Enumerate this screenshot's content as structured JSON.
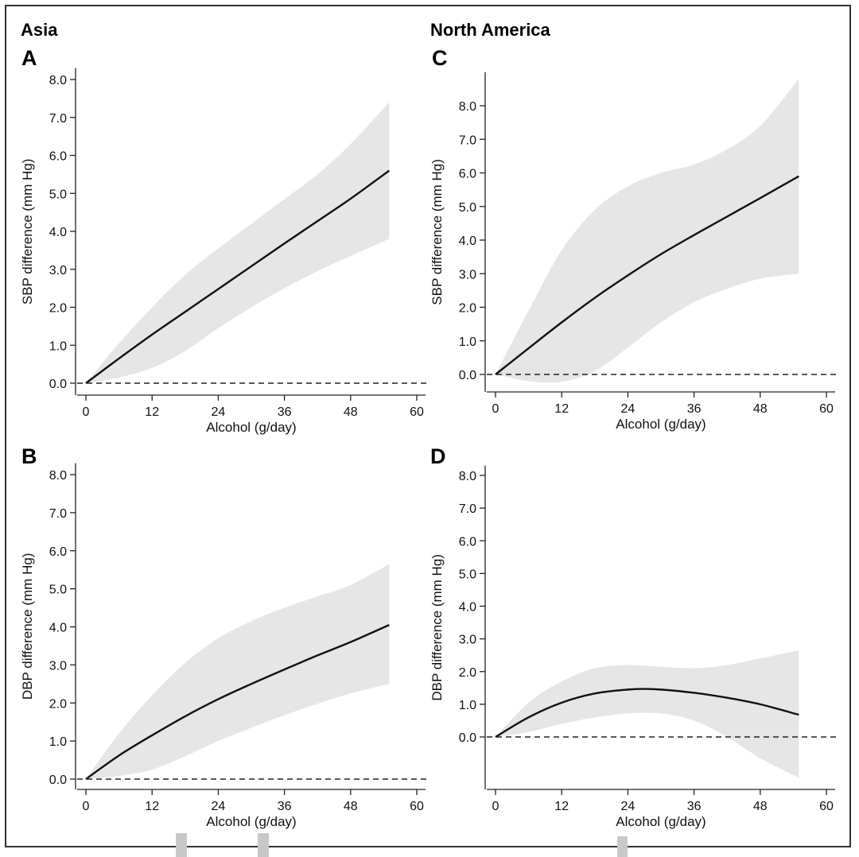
{
  "figure": {
    "regions": [
      {
        "name": "Asia",
        "panels": [
          "A",
          "B"
        ]
      },
      {
        "name": "North America",
        "panels": [
          "C",
          "D"
        ]
      }
    ]
  },
  "chart_data": [
    {
      "panel": "A",
      "region": "Asia",
      "type": "line",
      "xlabel": "Alcohol (g/day)",
      "ylabel": "SBP difference (mm Hg)",
      "xlim": [
        -1,
        62
      ],
      "ylim": [
        -0.3,
        8.3
      ],
      "xticks": [
        0,
        12,
        24,
        36,
        48,
        60
      ],
      "xtick_labels": [
        "0",
        "12",
        "24",
        "36",
        "48",
        "60"
      ],
      "yticks": [
        0,
        1,
        2,
        3,
        4,
        5,
        6,
        7,
        8
      ],
      "ytick_labels": [
        "0.0",
        "1.0",
        "2.0",
        "3.0",
        "4.0",
        "5.0",
        "6.0",
        "7.0",
        "8.0"
      ],
      "reference_line": 0,
      "series": [
        {
          "role": "estimate",
          "x": [
            0,
            6,
            12,
            18,
            24,
            30,
            36,
            42,
            48,
            55
          ],
          "y": [
            0,
            0.65,
            1.28,
            1.88,
            2.48,
            3.08,
            3.68,
            4.27,
            4.86,
            5.6
          ]
        },
        {
          "role": "ci_lower",
          "x": [
            0,
            6,
            12,
            18,
            24,
            30,
            36,
            42,
            48,
            55
          ],
          "y": [
            0,
            0.15,
            0.4,
            0.85,
            1.45,
            2.0,
            2.5,
            2.95,
            3.35,
            3.8
          ]
        },
        {
          "role": "ci_upper",
          "x": [
            0,
            6,
            12,
            18,
            24,
            30,
            36,
            42,
            48,
            55
          ],
          "y": [
            0,
            1.05,
            2.0,
            2.85,
            3.55,
            4.2,
            4.85,
            5.5,
            6.3,
            7.4
          ]
        }
      ]
    },
    {
      "panel": "B",
      "region": "Asia",
      "type": "line",
      "xlabel": "Alcohol (g/day)",
      "ylabel": "DBP difference (mm Hg)",
      "xlim": [
        -1,
        62
      ],
      "ylim": [
        -0.3,
        8.3
      ],
      "xticks": [
        0,
        12,
        24,
        36,
        48,
        60
      ],
      "xtick_labels": [
        "0",
        "12",
        "24",
        "36",
        "48",
        "60"
      ],
      "yticks": [
        0,
        1,
        2,
        3,
        4,
        5,
        6,
        7,
        8
      ],
      "ytick_labels": [
        "0.0",
        "1.0",
        "2.0",
        "3.0",
        "4.0",
        "5.0",
        "6.0",
        "7.0",
        "8.0"
      ],
      "reference_line": 0,
      "series": [
        {
          "role": "estimate",
          "x": [
            0,
            6,
            12,
            18,
            24,
            30,
            36,
            42,
            48,
            55
          ],
          "y": [
            0,
            0.62,
            1.15,
            1.65,
            2.1,
            2.5,
            2.88,
            3.25,
            3.6,
            4.05
          ]
        },
        {
          "role": "ci_lower",
          "x": [
            0,
            6,
            12,
            18,
            24,
            30,
            36,
            42,
            48,
            55
          ],
          "y": [
            0,
            0.08,
            0.25,
            0.6,
            1.0,
            1.35,
            1.68,
            1.98,
            2.25,
            2.5
          ]
        },
        {
          "role": "ci_upper",
          "x": [
            0,
            6,
            12,
            18,
            24,
            30,
            36,
            42,
            48,
            55
          ],
          "y": [
            0,
            1.2,
            2.2,
            3.05,
            3.7,
            4.15,
            4.5,
            4.8,
            5.1,
            5.65
          ]
        }
      ]
    },
    {
      "panel": "C",
      "region": "North America",
      "type": "line",
      "xlabel": "Alcohol (g/day)",
      "ylabel": "SBP difference (mm Hg)",
      "xlim": [
        -1,
        62
      ],
      "ylim": [
        -0.55,
        9.0
      ],
      "xticks": [
        0,
        12,
        24,
        36,
        48,
        60
      ],
      "xtick_labels": [
        "0",
        "12",
        "24",
        "36",
        "48",
        "60"
      ],
      "yticks": [
        0,
        1,
        2,
        3,
        4,
        5,
        6,
        7,
        8
      ],
      "ytick_labels": [
        "0.0",
        "1.0",
        "2.0",
        "3.0",
        "4.0",
        "5.0",
        "6.0",
        "7.0",
        "8.0"
      ],
      "reference_line": 0,
      "series": [
        {
          "role": "estimate",
          "x": [
            0,
            6,
            12,
            18,
            24,
            30,
            36,
            42,
            48,
            55
          ],
          "y": [
            0,
            0.78,
            1.55,
            2.28,
            2.95,
            3.58,
            4.15,
            4.7,
            5.25,
            5.9
          ]
        },
        {
          "role": "ci_lower",
          "x": [
            0,
            6,
            12,
            18,
            24,
            30,
            36,
            42,
            48,
            55
          ],
          "y": [
            0,
            -0.2,
            -0.22,
            0.1,
            0.8,
            1.55,
            2.15,
            2.55,
            2.85,
            3.0
          ]
        },
        {
          "role": "ci_upper",
          "x": [
            0,
            6,
            12,
            18,
            24,
            30,
            36,
            42,
            48,
            55
          ],
          "y": [
            0,
            1.9,
            3.7,
            4.9,
            5.6,
            6.0,
            6.25,
            6.7,
            7.4,
            8.8
          ]
        }
      ]
    },
    {
      "panel": "D",
      "region": "North America",
      "type": "line",
      "xlabel": "Alcohol (g/day)",
      "ylabel": "DBP difference (mm Hg)",
      "xlim": [
        -1,
        62
      ],
      "ylim": [
        -1.55,
        8.3
      ],
      "xticks": [
        0,
        12,
        24,
        36,
        48,
        60
      ],
      "xtick_labels": [
        "0",
        "12",
        "24",
        "36",
        "48",
        "60"
      ],
      "yticks": [
        0,
        1,
        2,
        3,
        4,
        5,
        6,
        7,
        8
      ],
      "ytick_labels": [
        "0.0",
        "1.0",
        "2.0",
        "3.0",
        "4.0",
        "5.0",
        "6.0",
        "7.0",
        "8.0"
      ],
      "reference_line": 0,
      "series": [
        {
          "role": "estimate",
          "x": [
            0,
            6,
            12,
            18,
            24,
            27,
            30,
            36,
            42,
            48,
            55
          ],
          "y": [
            0,
            0.6,
            1.05,
            1.33,
            1.45,
            1.47,
            1.45,
            1.35,
            1.2,
            1.0,
            0.68
          ]
        },
        {
          "role": "ci_lower",
          "x": [
            0,
            6,
            12,
            18,
            24,
            30,
            36,
            42,
            48,
            55
          ],
          "y": [
            0,
            0.15,
            0.4,
            0.6,
            0.72,
            0.72,
            0.5,
            0.0,
            -0.65,
            -1.25
          ]
        },
        {
          "role": "ci_upper",
          "x": [
            0,
            6,
            12,
            18,
            24,
            30,
            36,
            42,
            48,
            55
          ],
          "y": [
            0,
            1.05,
            1.7,
            2.1,
            2.2,
            2.15,
            2.1,
            2.2,
            2.4,
            2.65
          ]
        }
      ]
    }
  ]
}
